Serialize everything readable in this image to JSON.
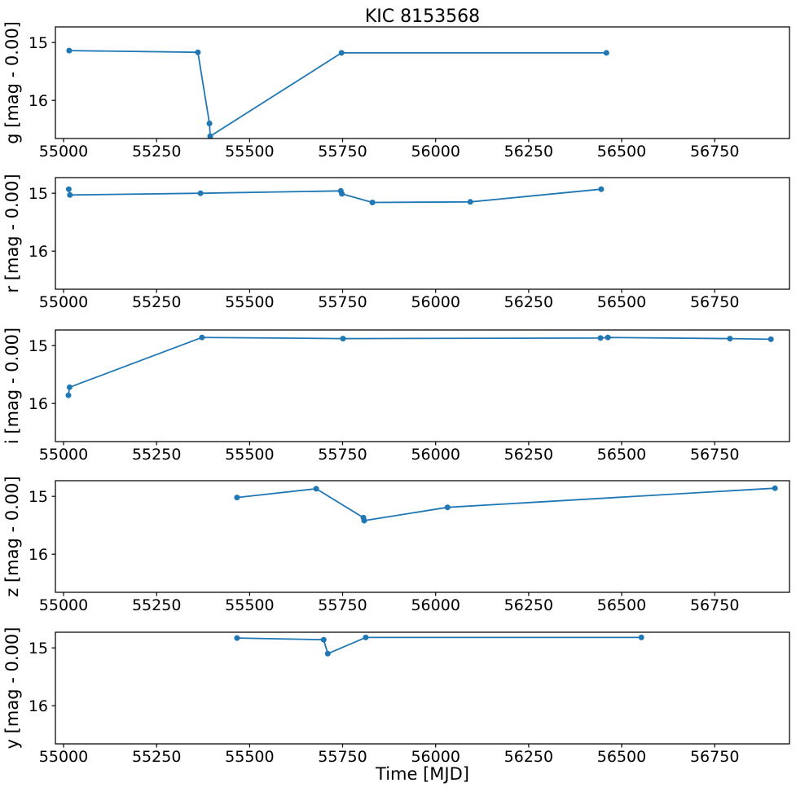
{
  "title": "KIC 8153568",
  "xlabel": "Time [MJD]",
  "colors": {
    "series": "#1f77b4",
    "axis": "#000000",
    "background": "#ffffff"
  },
  "chart_data": {
    "type": "line",
    "title": "KIC 8153568",
    "xlabel": "Time [MJD]",
    "marker": "o",
    "grid": false,
    "legend": "none",
    "line_color": "#1f77b4",
    "x_ticks": [
      55000,
      55250,
      55500,
      55750,
      56000,
      56250,
      56500,
      56750
    ],
    "xlim": [
      54978,
      56951
    ],
    "y_ticks": [
      15,
      16
    ],
    "ylim_top": 14.73,
    "ylim_bottom": 16.66,
    "y_axis_inverted": true,
    "panels": [
      {
        "band": "g",
        "ylabel": "g [mag - 0.00]",
        "points": [
          [
            55015,
            15.14
          ],
          [
            55361,
            15.17
          ],
          [
            55392,
            16.4
          ],
          [
            55394,
            16.62
          ],
          [
            55747,
            15.18
          ],
          [
            56459,
            15.18
          ]
        ]
      },
      {
        "band": "r",
        "ylabel": "r [mag - 0.00]",
        "points": [
          [
            55014,
            14.93
          ],
          [
            55017,
            15.03
          ],
          [
            55368,
            15.0
          ],
          [
            55745,
            14.96
          ],
          [
            55748,
            15.01
          ],
          [
            55830,
            15.16
          ],
          [
            56093,
            15.15
          ],
          [
            56445,
            14.93
          ]
        ]
      },
      {
        "band": "i",
        "ylabel": "i [mag - 0.00]",
        "points": [
          [
            55013,
            15.86
          ],
          [
            55016,
            15.72
          ],
          [
            55372,
            14.86
          ],
          [
            55751,
            14.88
          ],
          [
            56443,
            14.87
          ],
          [
            56463,
            14.86
          ],
          [
            56791,
            14.88
          ],
          [
            56901,
            14.89
          ]
        ]
      },
      {
        "band": "z",
        "ylabel": "z [mag - 0.00]",
        "points": [
          [
            55466,
            15.02
          ],
          [
            55679,
            14.87
          ],
          [
            55806,
            15.37
          ],
          [
            55808,
            15.42
          ],
          [
            56032,
            15.19
          ],
          [
            56912,
            14.86
          ]
        ]
      },
      {
        "band": "y",
        "ylabel": "y [mag - 0.00]",
        "points": [
          [
            55466,
            14.83
          ],
          [
            55699,
            14.86
          ],
          [
            55710,
            15.1
          ],
          [
            55812,
            14.82
          ],
          [
            56553,
            14.82
          ]
        ]
      }
    ]
  }
}
